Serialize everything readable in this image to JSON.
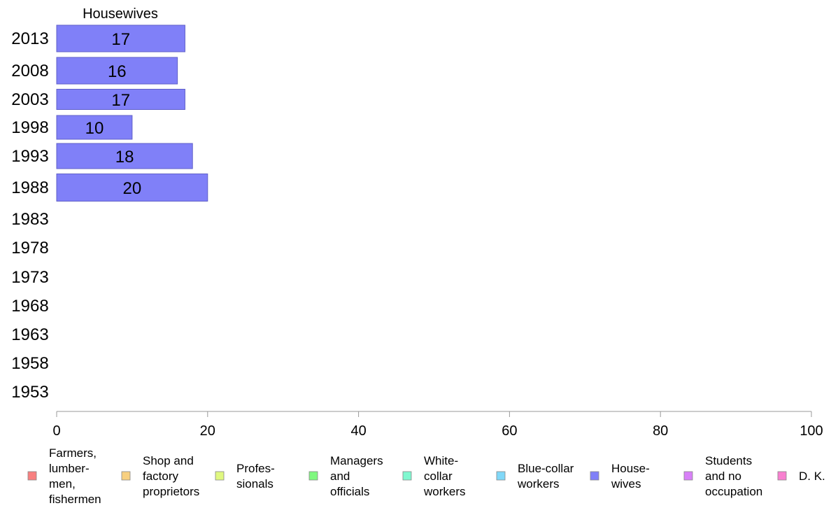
{
  "chart_data": {
    "type": "bar",
    "orientation": "horizontal",
    "title": "Housewives",
    "categories": [
      "2013",
      "2008",
      "2003",
      "1998",
      "1993",
      "1988",
      "1983",
      "1978",
      "1973",
      "1968",
      "1963",
      "1958",
      "1953"
    ],
    "series": [
      {
        "name": "Housewives",
        "color": "#8080f8",
        "values": [
          17,
          16,
          17,
          10,
          18,
          20,
          null,
          null,
          null,
          null,
          null,
          null,
          null
        ],
        "labels": [
          "17",
          "16",
          "17",
          "10",
          "18",
          "20",
          "",
          "",
          "",
          "",
          "",
          "",
          ""
        ]
      }
    ],
    "xlim": [
      0,
      100
    ],
    "xticks": [
      "0",
      "20",
      "40",
      "60",
      "80",
      "100"
    ],
    "grid": false,
    "legend_position": "bottom",
    "legend": [
      {
        "lines": [
          "Farmers,",
          "lumber-",
          "men,",
          "fishermen"
        ],
        "color": "#f88080"
      },
      {
        "lines": [
          "Shop and",
          "factory",
          "proprietors"
        ],
        "color": "#f8d080"
      },
      {
        "lines": [
          "Profes-",
          "sionals"
        ],
        "color": "#e0f880"
      },
      {
        "lines": [
          "Managers",
          "and",
          "officials"
        ],
        "color": "#80f880"
      },
      {
        "lines": [
          "White-",
          "collar",
          "workers"
        ],
        "color": "#80f8d0"
      },
      {
        "lines": [
          "Blue-collar",
          "workers"
        ],
        "color": "#80d8f8"
      },
      {
        "lines": [
          "House-",
          "wives"
        ],
        "color": "#8080f8"
      },
      {
        "lines": [
          "Students",
          "and no",
          "occupation"
        ],
        "color": "#d880f8"
      },
      {
        "lines": [
          "D. K."
        ],
        "color": "#f880d0"
      }
    ]
  }
}
